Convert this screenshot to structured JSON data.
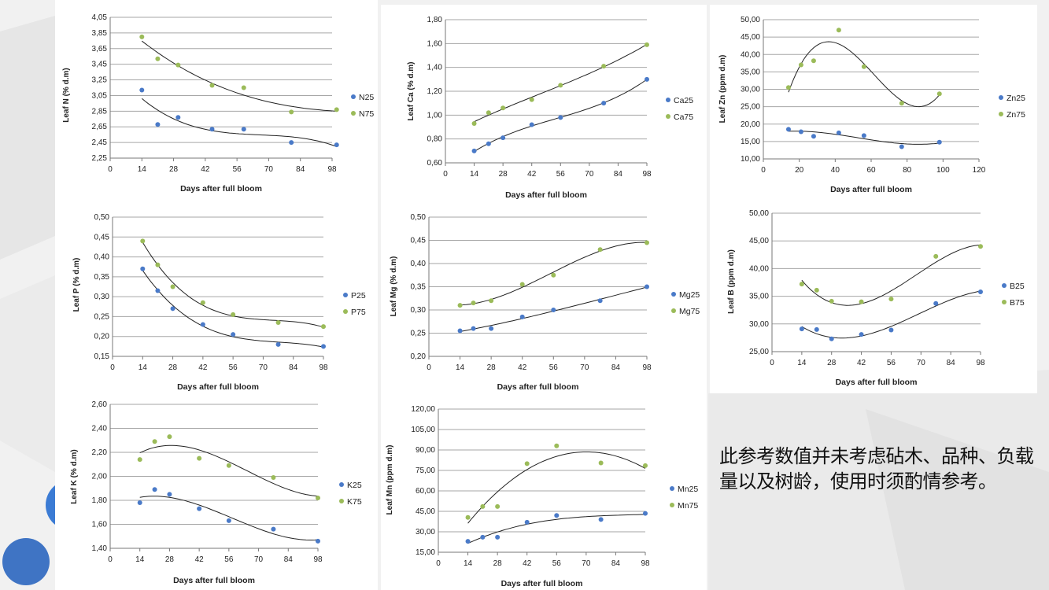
{
  "colors": {
    "s25": "#4a7ac8",
    "s75": "#9bbb59",
    "grid": "#a6a6a6",
    "curve": "#222222"
  },
  "note": "此参考数值并未考虑砧木、品种、负载量以及树龄，使用时须酌情参考。",
  "chart_data": [
    {
      "type": "scatter",
      "xlabel": "Days after full bloom",
      "ylabel": "Leaf N (% d.m)",
      "xticks": [
        "0",
        "14",
        "28",
        "42",
        "56",
        "70",
        "84",
        "98"
      ],
      "xlim": [
        0,
        98
      ],
      "yticks": [
        "4,05",
        "3,85",
        "3,65",
        "3,45",
        "3,25",
        "3,05",
        "2,85",
        "2,65",
        "2,45",
        "2,25"
      ],
      "ylim": [
        2.25,
        4.05
      ],
      "trendline": "polynomial",
      "series": [
        {
          "name": "N25",
          "x": [
            14,
            21,
            30,
            45,
            59,
            80,
            100
          ],
          "y": [
            3.12,
            2.68,
            2.77,
            2.62,
            2.62,
            2.45,
            2.42
          ]
        },
        {
          "name": "N75",
          "x": [
            14,
            21,
            30,
            45,
            59,
            80,
            100
          ],
          "y": [
            3.8,
            3.52,
            3.44,
            3.18,
            3.15,
            2.84,
            2.87
          ]
        }
      ]
    },
    {
      "type": "scatter",
      "xlabel": "Days after full bloom",
      "ylabel": "Leaf Ca (% d.m)",
      "xticks": [
        "0",
        "14",
        "28",
        "42",
        "56",
        "70",
        "84",
        "98"
      ],
      "xlim": [
        0,
        98
      ],
      "yticks": [
        "1,80",
        "1,60",
        "1,40",
        "1,20",
        "1,00",
        "0,80",
        "0,60"
      ],
      "ylim": [
        0.6,
        1.8
      ],
      "trendline": "polynomial",
      "series": [
        {
          "name": "Ca25",
          "x": [
            14,
            21,
            28,
            42,
            56,
            77,
            98
          ],
          "y": [
            0.7,
            0.76,
            0.81,
            0.92,
            0.98,
            1.1,
            1.3
          ]
        },
        {
          "name": "Ca75",
          "x": [
            14,
            21,
            28,
            42,
            56,
            77,
            98
          ],
          "y": [
            0.93,
            1.02,
            1.06,
            1.13,
            1.25,
            1.41,
            1.59
          ]
        }
      ]
    },
    {
      "type": "scatter",
      "xlabel": "Days after full bloom",
      "ylabel": "Leaf Zn (ppm d.m)",
      "xticks": [
        "0",
        "20",
        "40",
        "60",
        "80",
        "100",
        "120"
      ],
      "xlim": [
        0,
        120
      ],
      "yticks": [
        "50,00",
        "45,00",
        "40,00",
        "35,00",
        "30,00",
        "25,00",
        "20,00",
        "15,00",
        "10,00"
      ],
      "ylim": [
        10,
        50
      ],
      "trendline": "polynomial",
      "series": [
        {
          "name": "Zn25",
          "x": [
            14,
            21,
            28,
            42,
            56,
            77,
            98
          ],
          "y": [
            18.5,
            17.8,
            16.5,
            17.5,
            16.7,
            13.5,
            14.8
          ]
        },
        {
          "name": "Zn75",
          "x": [
            14,
            21,
            28,
            42,
            56,
            77,
            98
          ],
          "y": [
            30.5,
            37.0,
            38.2,
            47.0,
            36.5,
            26.0,
            28.7
          ]
        }
      ]
    },
    {
      "type": "scatter",
      "xlabel": "Days after full bloom",
      "ylabel": "Leaf P (% d.m)",
      "xticks": [
        "0",
        "14",
        "28",
        "42",
        "56",
        "70",
        "84",
        "98"
      ],
      "xlim": [
        0,
        98
      ],
      "yticks": [
        "0,50",
        "0,45",
        "0,40",
        "0,35",
        "0,30",
        "0,25",
        "0,20",
        "0,15"
      ],
      "ylim": [
        0.15,
        0.5
      ],
      "trendline": "polynomial",
      "series": [
        {
          "name": "P25",
          "x": [
            14,
            21,
            28,
            42,
            56,
            77,
            98
          ],
          "y": [
            0.37,
            0.315,
            0.27,
            0.23,
            0.205,
            0.18,
            0.175
          ]
        },
        {
          "name": "P75",
          "x": [
            14,
            21,
            28,
            42,
            56,
            77,
            98
          ],
          "y": [
            0.44,
            0.38,
            0.325,
            0.285,
            0.255,
            0.235,
            0.225
          ]
        }
      ]
    },
    {
      "type": "scatter",
      "xlabel": "Days after full bloom",
      "ylabel": "Leaf Mg (% d.m)",
      "xticks": [
        "0",
        "14",
        "28",
        "42",
        "56",
        "70",
        "84",
        "98"
      ],
      "xlim": [
        0,
        98
      ],
      "yticks": [
        "0,50",
        "0,45",
        "0,40",
        "0,35",
        "0,30",
        "0,25",
        "0,20"
      ],
      "ylim": [
        0.2,
        0.5
      ],
      "trendline": "polynomial",
      "series": [
        {
          "name": "Mg25",
          "x": [
            14,
            20,
            28,
            42,
            56,
            77,
            98
          ],
          "y": [
            0.255,
            0.26,
            0.26,
            0.285,
            0.3,
            0.32,
            0.35
          ]
        },
        {
          "name": "Mg75",
          "x": [
            14,
            20,
            28,
            42,
            56,
            77,
            98
          ],
          "y": [
            0.31,
            0.315,
            0.32,
            0.355,
            0.375,
            0.43,
            0.445
          ]
        }
      ]
    },
    {
      "type": "scatter",
      "xlabel": "Days after full bloom",
      "ylabel": "Leaf B (ppm d.m)",
      "xticks": [
        "0",
        "14",
        "28",
        "42",
        "56",
        "70",
        "84",
        "98"
      ],
      "xlim": [
        0,
        98
      ],
      "yticks": [
        "50,00",
        "45,00",
        "40,00",
        "35,00",
        "30,00",
        "25,00"
      ],
      "ylim": [
        25,
        50
      ],
      "trendline": "polynomial",
      "series": [
        {
          "name": "B25",
          "x": [
            14,
            21,
            28,
            42,
            56,
            77,
            98
          ],
          "y": [
            29.1,
            29.0,
            27.3,
            28.1,
            28.9,
            33.7,
            35.8
          ]
        },
        {
          "name": "B75",
          "x": [
            14,
            21,
            28,
            42,
            56,
            77,
            98
          ],
          "y": [
            37.2,
            36.1,
            34.1,
            34.0,
            34.5,
            42.2,
            44.0
          ]
        }
      ]
    },
    {
      "type": "scatter",
      "xlabel": "Days after full bloom",
      "ylabel": "Leaf K (% d.m)",
      "xticks": [
        "0",
        "14",
        "28",
        "42",
        "56",
        "70",
        "84",
        "98"
      ],
      "xlim": [
        0,
        98
      ],
      "yticks": [
        "2,60",
        "2,40",
        "2,20",
        "2,00",
        "1,80",
        "1,60",
        "1,40"
      ],
      "ylim": [
        1.4,
        2.6
      ],
      "trendline": "polynomial",
      "series": [
        {
          "name": "K25",
          "x": [
            14,
            21,
            28,
            42,
            56,
            77,
            98
          ],
          "y": [
            1.78,
            1.89,
            1.85,
            1.73,
            1.63,
            1.56,
            1.46
          ]
        },
        {
          "name": "K75",
          "x": [
            14,
            21,
            28,
            42,
            56,
            77,
            98
          ],
          "y": [
            2.14,
            2.29,
            2.33,
            2.15,
            2.09,
            1.99,
            1.82
          ]
        }
      ]
    },
    {
      "type": "scatter",
      "xlabel": "Days after full bloom",
      "ylabel": "Leaf Mn (ppm d.m)",
      "xticks": [
        "0",
        "14",
        "28",
        "42",
        "56",
        "70",
        "84",
        "98"
      ],
      "xlim": [
        0,
        98
      ],
      "yticks": [
        "120,00",
        "105,00",
        "90,00",
        "75,00",
        "60,00",
        "45,00",
        "30,00",
        "15,00"
      ],
      "ylim": [
        15,
        120
      ],
      "trendline": "polynomial",
      "series": [
        {
          "name": "Mn25",
          "x": [
            14,
            21,
            28,
            42,
            56,
            77,
            98
          ],
          "y": [
            23.0,
            26.0,
            26.0,
            37.0,
            42.0,
            39.0,
            43.5
          ]
        },
        {
          "name": "Mn75",
          "x": [
            14,
            21,
            28,
            42,
            56,
            77,
            98
          ],
          "y": [
            40.5,
            48.5,
            48.5,
            80.0,
            93.0,
            80.5,
            78.5
          ]
        }
      ]
    }
  ]
}
